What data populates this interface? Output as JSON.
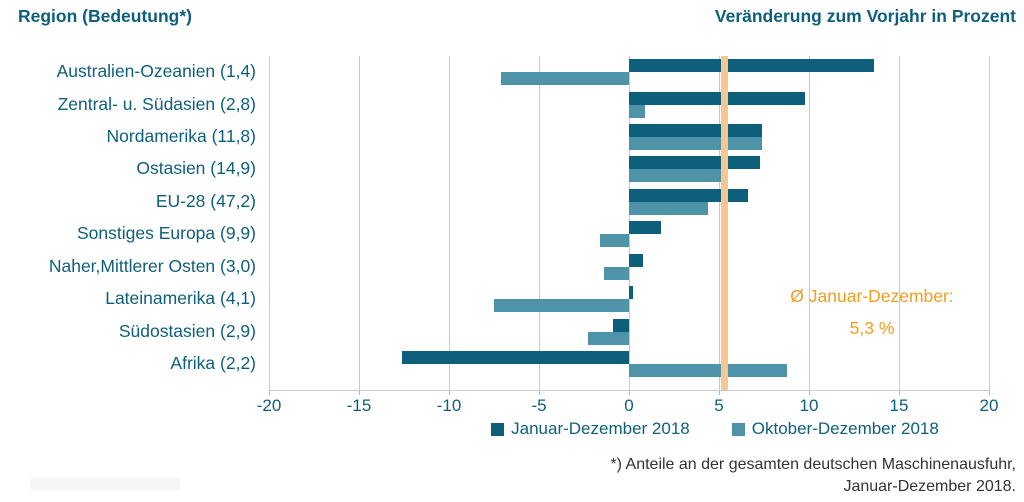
{
  "header": {
    "left_title": "Region (Bedeutung*)",
    "right_title": "Veränderung zum Vorjahr in Prozent"
  },
  "chart_data": {
    "type": "bar",
    "orientation": "horizontal",
    "title": "Veränderung zum Vorjahr in Prozent",
    "categories": [
      "Australien-Ozeanien (1,4)",
      "Zentral- u. Südasien (2,8)",
      "Nordamerika (11,8)",
      "Ostasien (14,9)",
      "EU-28 (47,2)",
      "Sonstiges Europa (9,9)",
      "Naher,Mittlerer Osten (3,0)",
      "Lateinamerika (4,1)",
      "Südostasien (2,9)",
      "Afrika (2,2)"
    ],
    "series": [
      {
        "name": "Januar-Dezember 2018",
        "color": "#0d5f7c",
        "values": [
          13.6,
          9.8,
          7.4,
          7.3,
          6.6,
          1.8,
          0.8,
          0.2,
          -0.9,
          -12.6
        ]
      },
      {
        "name": "Oktober-Dezember 2018",
        "color": "#4f93a9",
        "values": [
          -7.1,
          0.9,
          7.4,
          5.2,
          4.4,
          -1.6,
          -1.4,
          -7.5,
          -2.3,
          8.8
        ]
      }
    ],
    "xlim": [
      -20,
      20
    ],
    "xtick_labels": [
      "-20",
      "-15",
      "-10",
      "-5",
      "0",
      "5",
      "10",
      "15",
      "20"
    ],
    "grid": true,
    "legend_position": "bottom-center",
    "reference_line": {
      "value": 5.3,
      "line_color": "#f6c793",
      "label_line1": "Ø Januar-Dezember:",
      "label_line2": "5,3 %",
      "label_color": "#ef9e22"
    }
  },
  "footnote": {
    "line1": "*) Anteile an der gesamten deutschen Maschinenausfuhr,",
    "line2": "Januar-Dezember 2018."
  },
  "colors": {
    "axis_text": "#0d5f7c",
    "grid": "#c9c9c9",
    "background": "#ffffff"
  }
}
